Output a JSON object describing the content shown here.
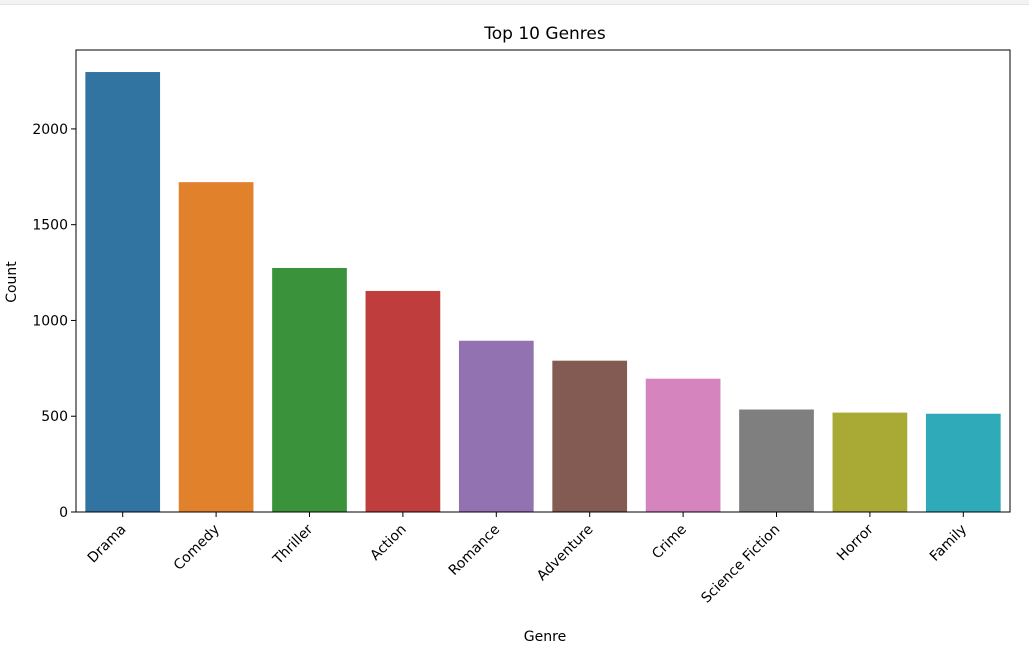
{
  "chart_data": {
    "type": "bar",
    "title": "Top 10 Genres",
    "xlabel": "Genre",
    "ylabel": "Count",
    "categories": [
      "Drama",
      "Comedy",
      "Thriller",
      "Action",
      "Romance",
      "Adventure",
      "Crime",
      "Science Fiction",
      "Horror",
      "Family"
    ],
    "values": [
      2297,
      1722,
      1274,
      1154,
      894,
      790,
      696,
      535,
      519,
      513
    ],
    "colors": [
      "#3274a1",
      "#e1812c",
      "#3a923a",
      "#c03d3e",
      "#9372b2",
      "#845b53",
      "#d684bd",
      "#7f7f7f",
      "#a9aa35",
      "#2eaab8"
    ],
    "ylim": [
      0,
      2412
    ],
    "yticks": [
      0,
      500,
      1000,
      1500,
      2000
    ],
    "grid": false,
    "legend": "none"
  }
}
